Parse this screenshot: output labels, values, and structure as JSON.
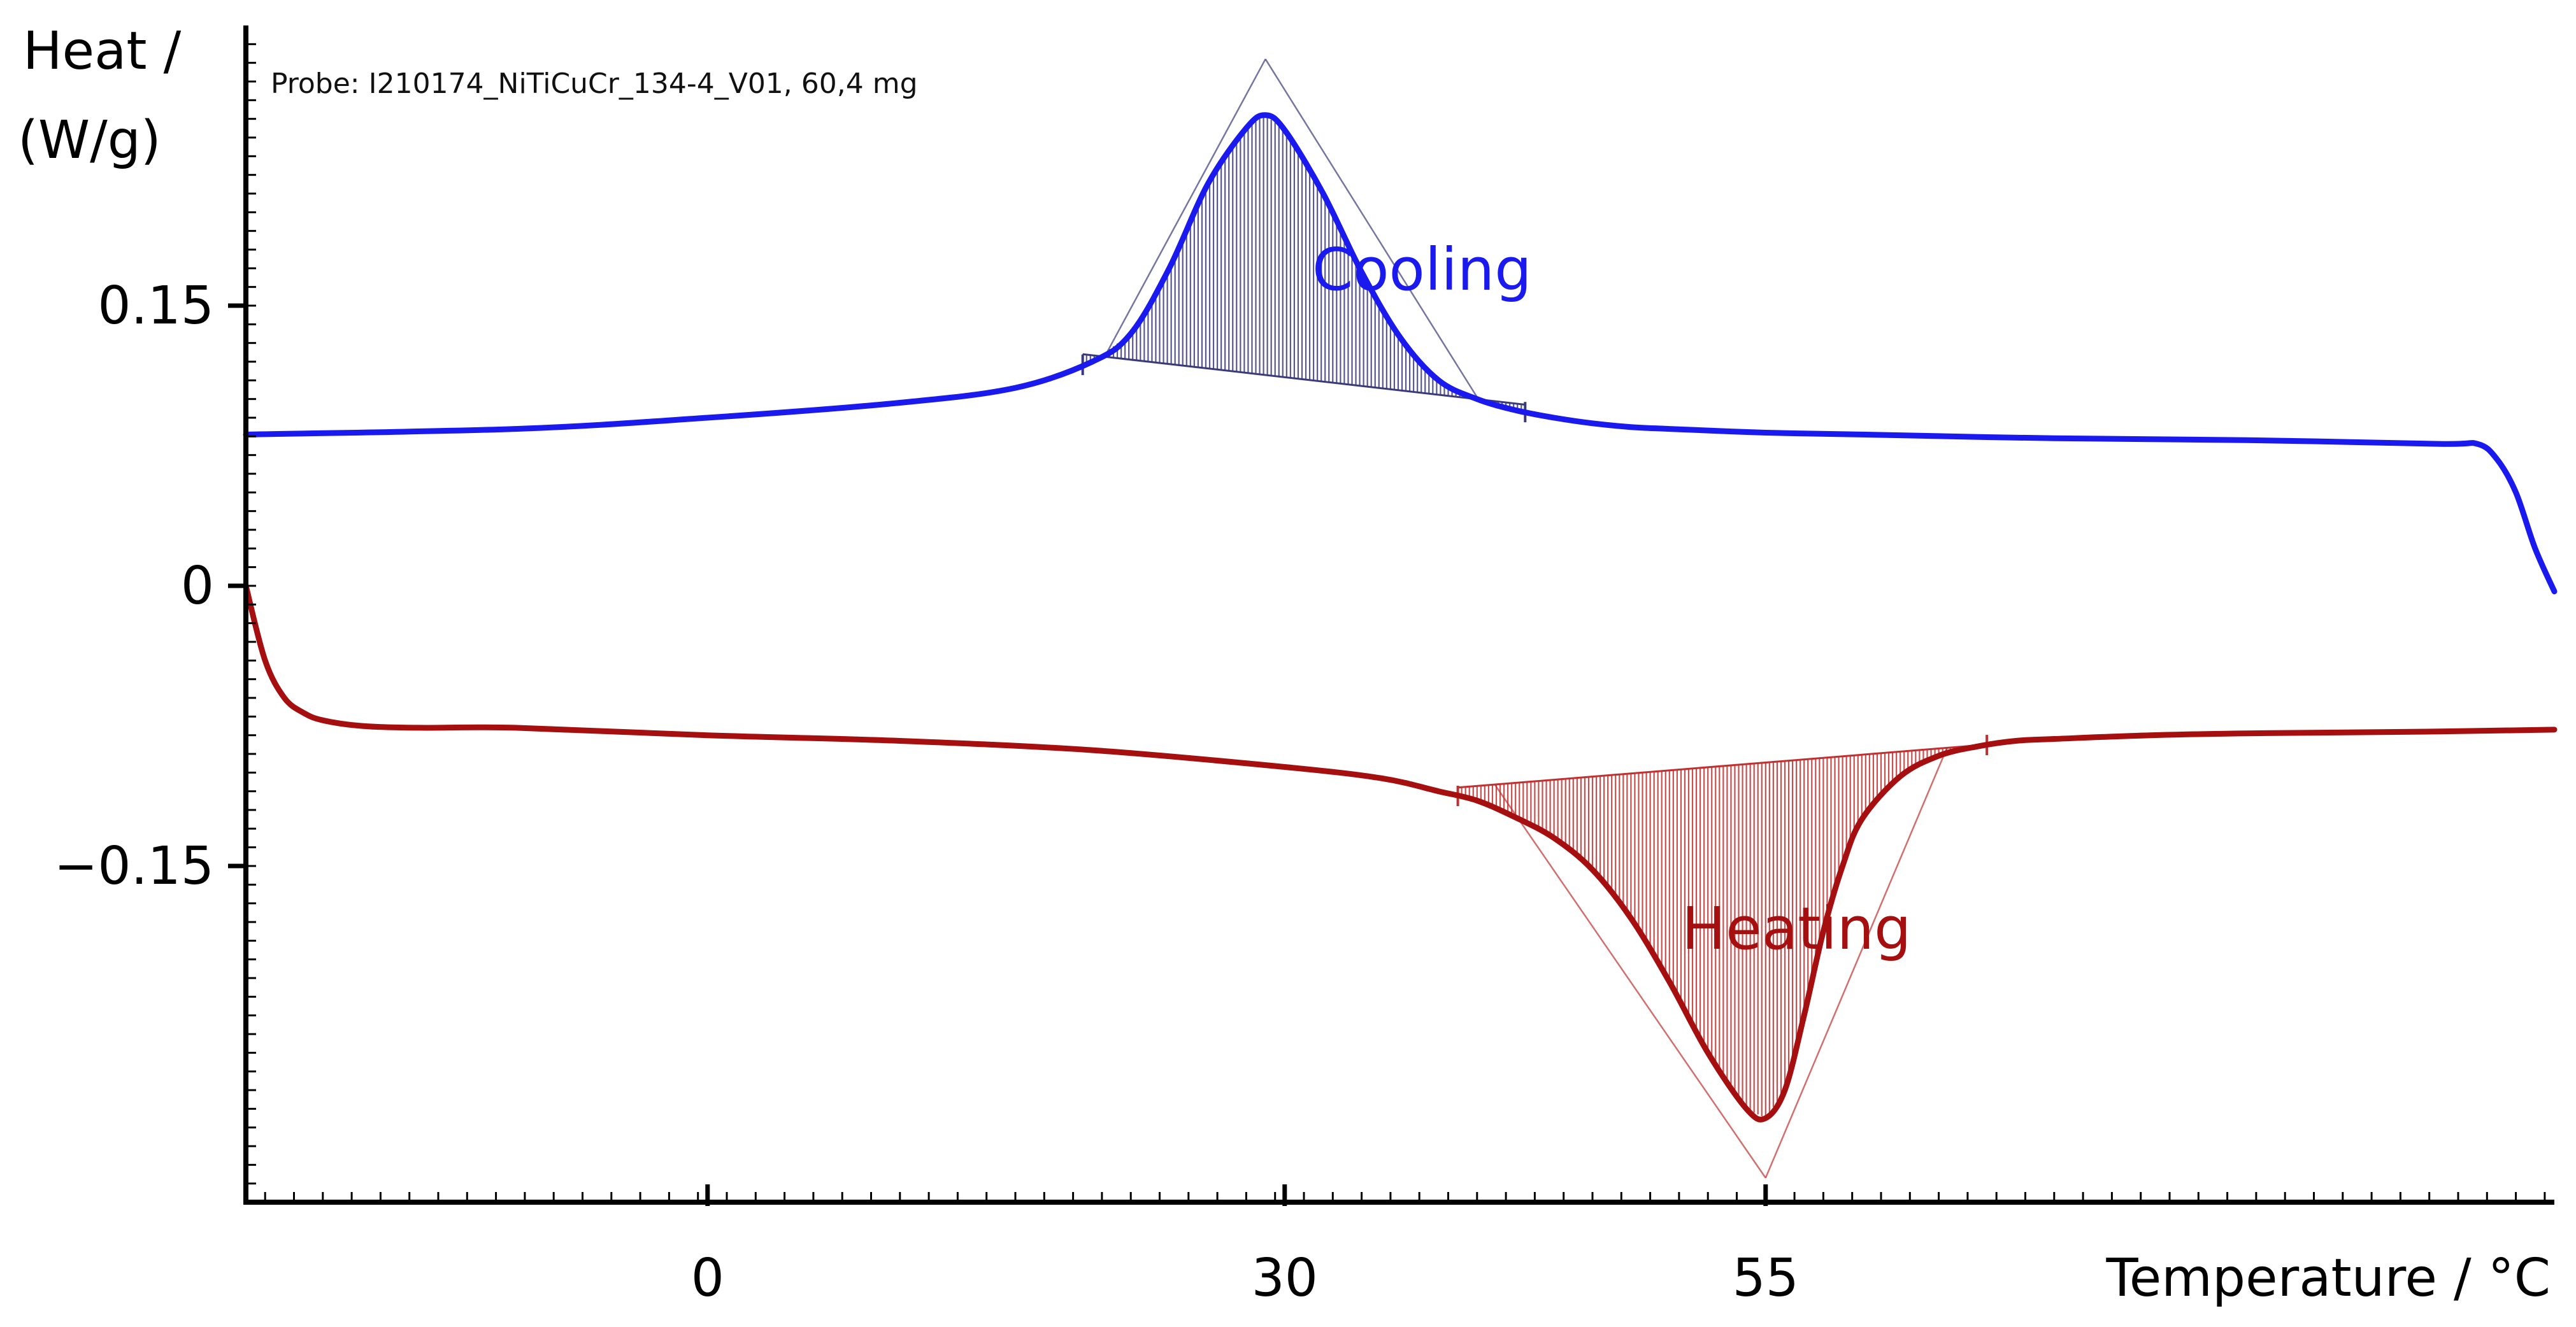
{
  "chart_data": {
    "type": "line",
    "title": "",
    "annotation": "Probe: I210174_NiTiCuCr_134-4_V01, 60,4 mg",
    "ylabel_line1": "Heat /",
    "ylabel_line2": "(W/g)",
    "xlabel": "Temperature / °C",
    "xlim": [
      -24,
      96
    ],
    "ylim": [
      -0.33,
      0.3
    ],
    "x_ticks": [
      0,
      30,
      55
    ],
    "x_tick_labels": [
      "0",
      "30",
      "55"
    ],
    "y_ticks": [
      0.15,
      0,
      -0.15
    ],
    "y_tick_labels": [
      "0.15",
      "0",
      "−0.15"
    ],
    "grid": false,
    "series": [
      {
        "name": "Cooling",
        "color": "#1a1aee",
        "hatch_color": "#3a3a7a",
        "x": [
          -24,
          -10,
          0,
          10,
          16,
          20,
          22,
          24,
          26,
          28,
          29,
          30,
          32,
          34,
          36,
          38,
          40,
          42,
          44,
          46,
          48,
          50,
          55,
          60,
          70,
          80,
          90,
          92,
          93,
          94,
          95,
          96
        ],
        "values": [
          0.081,
          0.084,
          0.09,
          0.098,
          0.106,
          0.12,
          0.135,
          0.17,
          0.215,
          0.245,
          0.252,
          0.244,
          0.21,
          0.168,
          0.133,
          0.11,
          0.1,
          0.094,
          0.09,
          0.087,
          0.085,
          0.084,
          0.082,
          0.081,
          0.079,
          0.078,
          0.076,
          0.076,
          0.068,
          0.05,
          0.02,
          -0.003
        ],
        "peak_area": {
          "start": 19.5,
          "end": 42.5,
          "baseline_start": 0.124,
          "baseline_end": 0.097
        }
      },
      {
        "name": "Heating",
        "color": "#a50f0f",
        "hatch_color": "#c03030",
        "x": [
          -24,
          -23,
          -22,
          -21,
          -20,
          -18,
          -15,
          -10,
          0,
          10,
          20,
          30,
          35,
          38,
          40,
          42,
          44,
          46,
          48,
          50,
          52,
          54,
          55,
          56,
          57,
          58,
          59,
          60,
          62,
          64,
          66,
          68,
          70,
          75,
          80,
          90,
          96
        ],
        "values": [
          0.0,
          -0.04,
          -0.06,
          -0.068,
          -0.072,
          -0.075,
          -0.076,
          -0.076,
          -0.08,
          -0.083,
          -0.088,
          -0.097,
          -0.103,
          -0.11,
          -0.115,
          -0.124,
          -0.135,
          -0.152,
          -0.178,
          -0.212,
          -0.25,
          -0.28,
          -0.285,
          -0.27,
          -0.23,
          -0.185,
          -0.15,
          -0.125,
          -0.102,
          -0.091,
          -0.086,
          -0.083,
          -0.082,
          -0.08,
          -0.079,
          -0.078,
          -0.077
        ],
        "peak_area": {
          "start": 39,
          "end": 66.5,
          "baseline_start": -0.108,
          "baseline_end": -0.085
        }
      }
    ]
  }
}
